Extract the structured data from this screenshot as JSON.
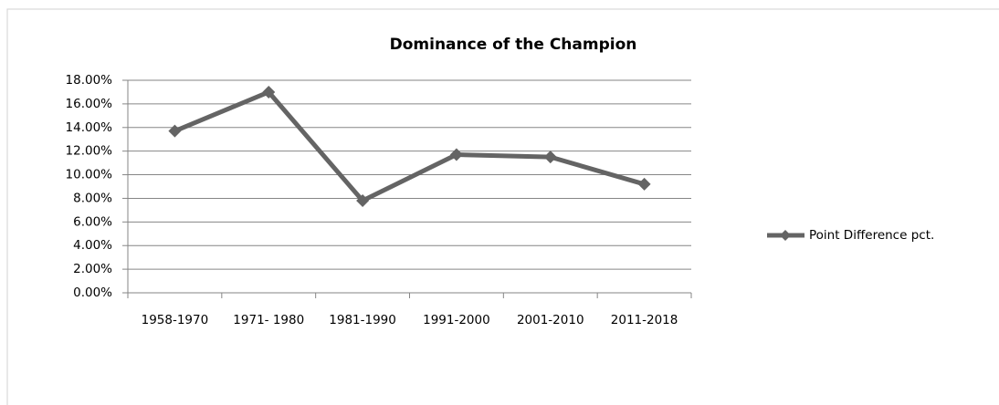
{
  "chart_data": {
    "type": "line",
    "title": "Dominance of the Champion",
    "categories": [
      "1958-1970",
      "1971- 1980",
      "1981-1990",
      "1991-2000",
      "2001-2010",
      "2011-2018"
    ],
    "series": [
      {
        "name": "Point Difference pct.",
        "color": "#646464",
        "values": [
          13.7,
          17.0,
          7.8,
          11.7,
          11.5,
          9.2
        ]
      }
    ],
    "ylim": [
      0,
      18
    ],
    "yticks": [
      {
        "value": 0,
        "label": "0.00%"
      },
      {
        "value": 2,
        "label": "2.00%"
      },
      {
        "value": 4,
        "label": "4.00%"
      },
      {
        "value": 6,
        "label": "6.00%"
      },
      {
        "value": 8,
        "label": "8.00%"
      },
      {
        "value": 10,
        "label": "10.00%"
      },
      {
        "value": 12,
        "label": "12.00%"
      },
      {
        "value": 14,
        "label": "14.00%"
      },
      {
        "value": 16,
        "label": "16.00%"
      },
      {
        "value": 18,
        "label": "18.00%"
      }
    ],
    "grid": true,
    "legend": "right"
  }
}
